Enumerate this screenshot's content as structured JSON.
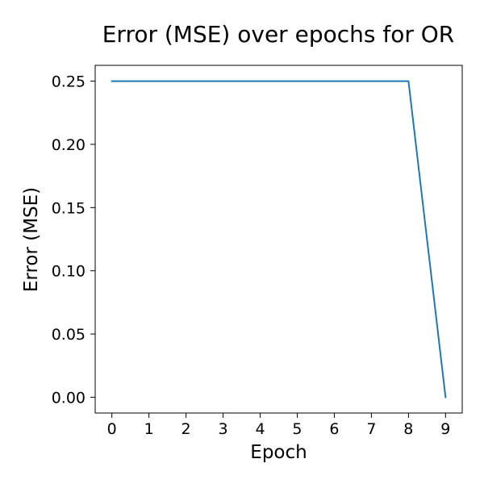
{
  "chart_data": {
    "type": "line",
    "title": "Error (MSE) over epochs for OR",
    "xlabel": "Epoch",
    "ylabel": "Error (MSE)",
    "x": [
      0,
      1,
      2,
      3,
      4,
      5,
      6,
      7,
      8,
      9
    ],
    "series": [
      {
        "values": [
          0.25,
          0.25,
          0.25,
          0.25,
          0.25,
          0.25,
          0.25,
          0.25,
          0.25,
          0.0
        ],
        "color": "#1f77b4"
      }
    ],
    "xlim": [
      -0.45,
      9.45
    ],
    "ylim": [
      -0.0125,
      0.2625
    ],
    "xticks": [
      0,
      1,
      2,
      3,
      4,
      5,
      6,
      7,
      8,
      9
    ],
    "xtick_labels": [
      "0",
      "1",
      "2",
      "3",
      "4",
      "5",
      "6",
      "7",
      "8",
      "9"
    ],
    "yticks": [
      0.0,
      0.05,
      0.1,
      0.15,
      0.2,
      0.25
    ],
    "ytick_labels": [
      "0.00",
      "0.05",
      "0.10",
      "0.15",
      "0.20",
      "0.25"
    ],
    "grid": false,
    "legend": "none"
  }
}
